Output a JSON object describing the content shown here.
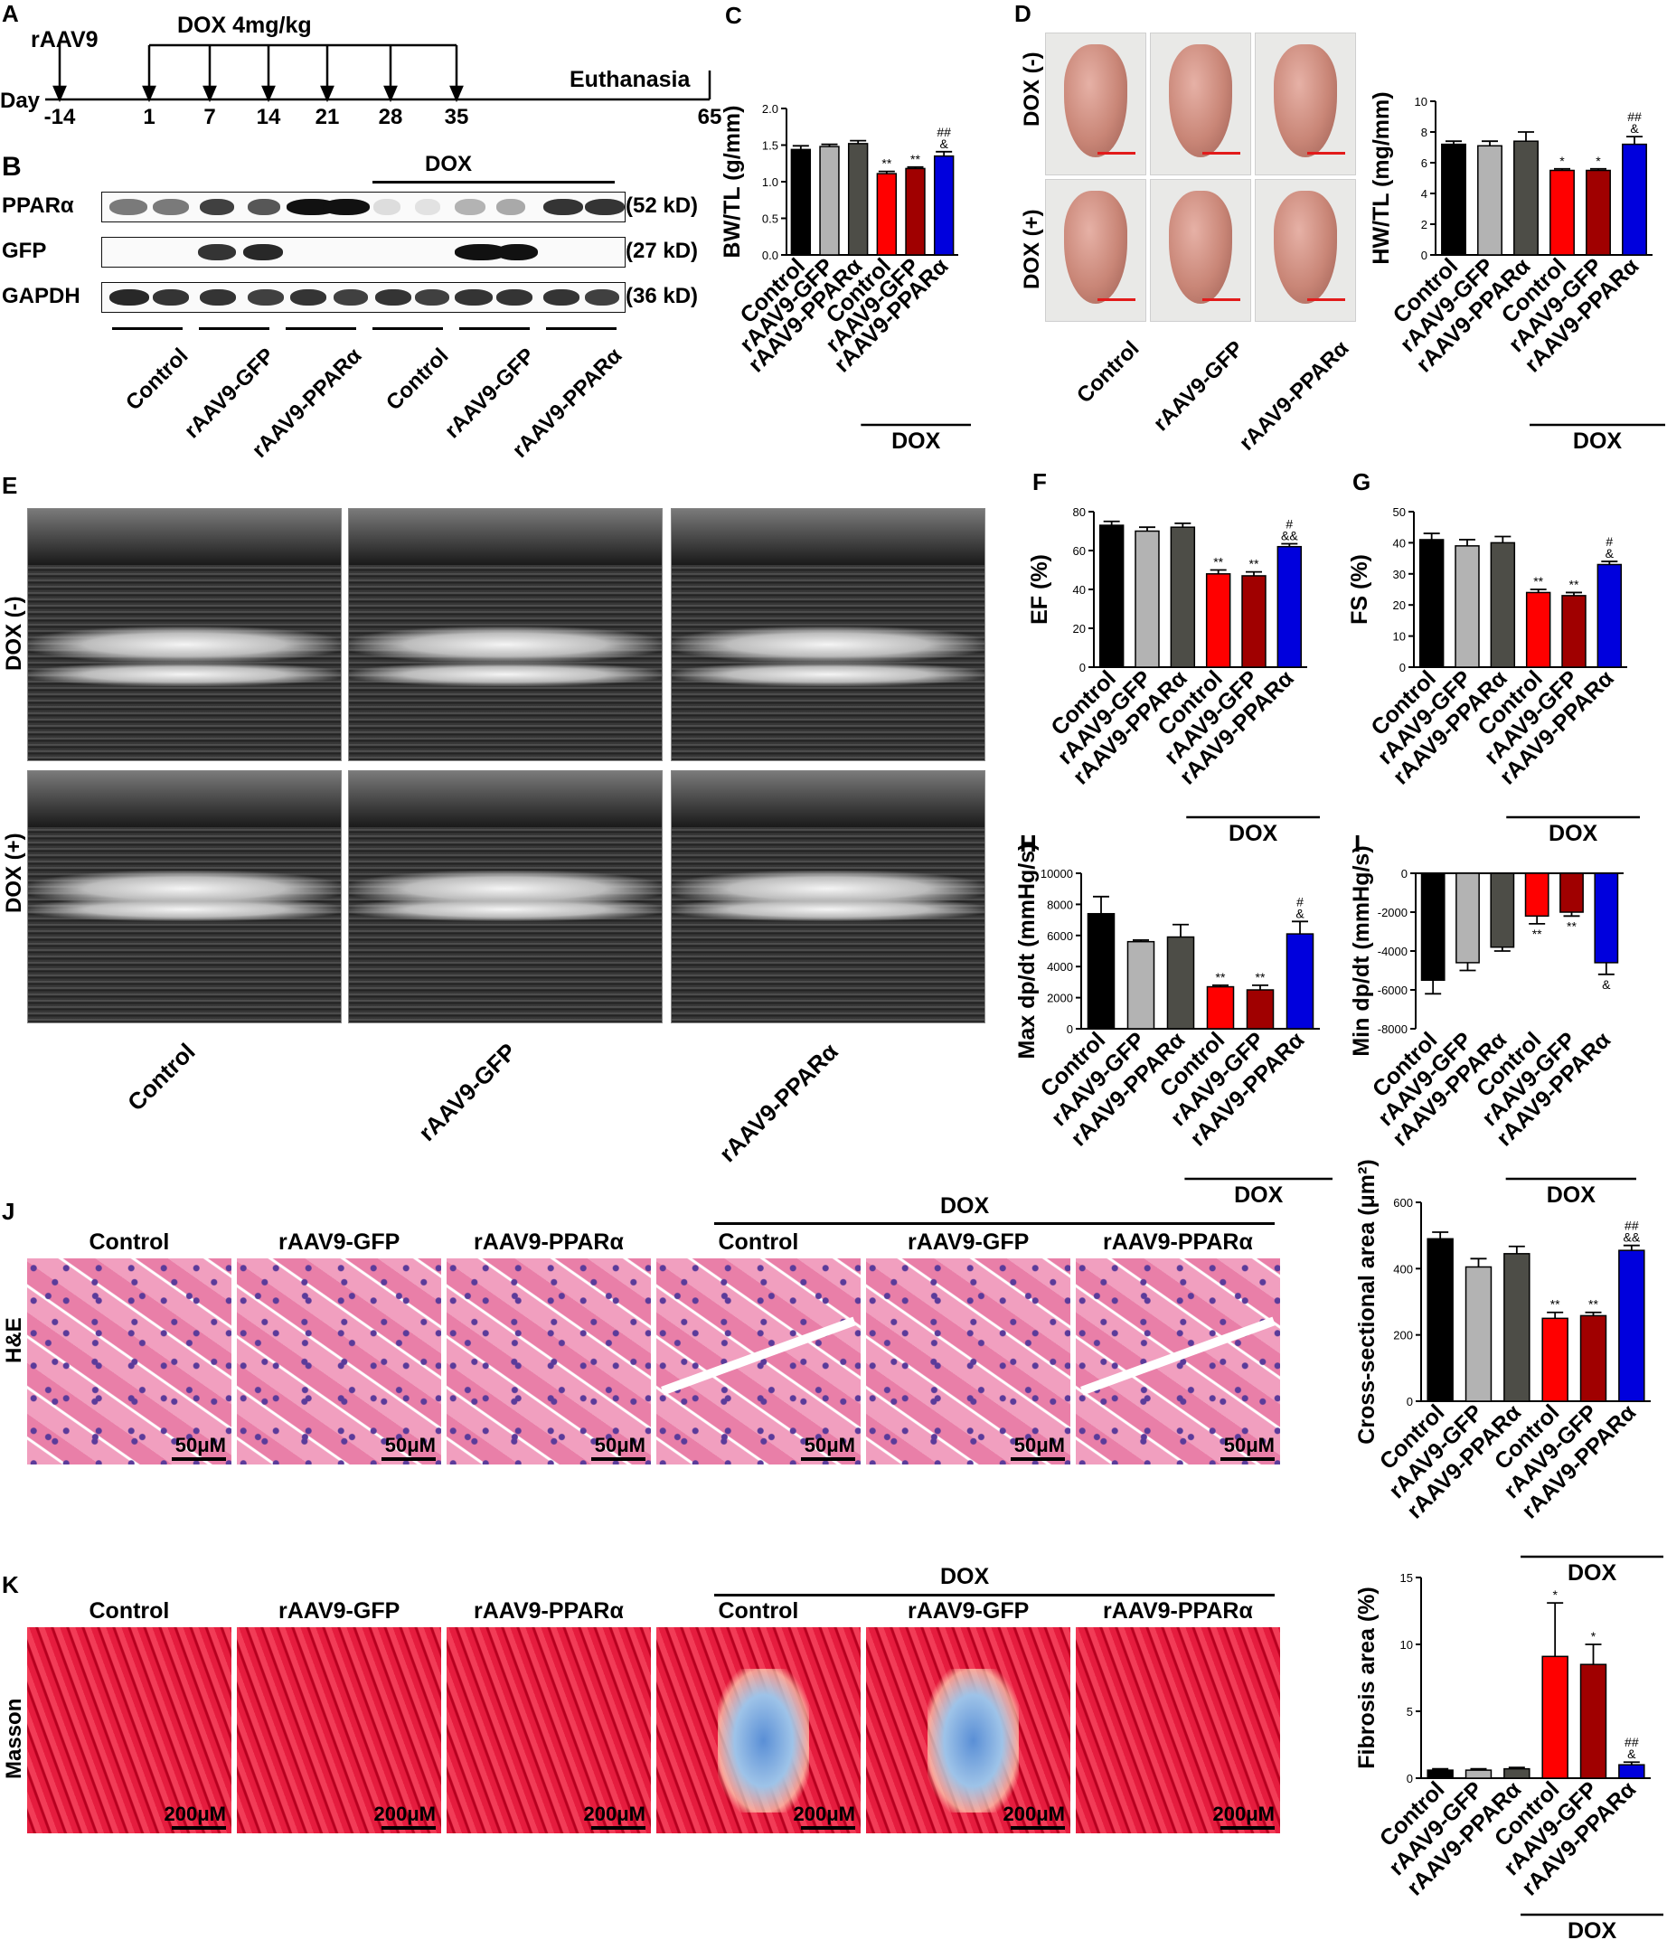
{
  "panelA": {
    "letter": "A",
    "vector": "rAAV9",
    "dose": "DOX 4mg/kg",
    "day_label": "Day",
    "end_label": "Euthanasia",
    "days": [
      "-14",
      "1",
      "7",
      "14",
      "21",
      "28",
      "35",
      "65"
    ]
  },
  "panelB": {
    "letter": "B",
    "dox": "DOX",
    "rows": [
      {
        "name": "PPARα",
        "size": "(52 kD)"
      },
      {
        "name": "GFP",
        "size": "(27 kD)"
      },
      {
        "name": "GAPDH",
        "size": "(36 kD)"
      }
    ],
    "groups": [
      "Control",
      "rAAV9-GFP",
      "rAAV9-PPARα",
      "Control",
      "rAAV9-GFP",
      "rAAV9-PPARα"
    ]
  },
  "panelD": {
    "letter": "D",
    "dox_neg": "DOX (-)",
    "dox_pos": "DOX (+)",
    "groups": [
      "Control",
      "rAAV9-GFP",
      "rAAV9-PPARα"
    ]
  },
  "panelE": {
    "letter": "E",
    "dox_neg": "DOX (-)",
    "dox_pos": "DOX (+)",
    "groups": [
      "Control",
      "rAAV9-GFP",
      "rAAV9-PPARα"
    ]
  },
  "panelJ": {
    "letter": "J",
    "dox": "DOX",
    "stain": "H&E",
    "groups": [
      "Control",
      "rAAV9-GFP",
      "rAAV9-PPARα",
      "Control",
      "rAAV9-GFP",
      "rAAV9-PPARα"
    ],
    "scale": "50μM"
  },
  "panelK": {
    "letter": "K",
    "dox": "DOX",
    "stain": "Masson",
    "groups": [
      "Control",
      "rAAV9-GFP",
      "rAAV9-PPARα",
      "Control",
      "rAAV9-GFP",
      "rAAV9-PPARα"
    ],
    "scale": "200μM"
  },
  "colors": {
    "control": "#000000",
    "gfp": "#b3b3b3",
    "ppar": "#4d4d47",
    "dox_control": "#ff0000",
    "dox_gfp": "#a00000",
    "dox_ppar": "#0000dd"
  },
  "chart_data": [
    {
      "id": "C",
      "type": "bar",
      "categories": [
        "Control",
        "rAAV9-GFP",
        "rAAV9-PPARα",
        "Control",
        "rAAV9-GFP",
        "rAAV9-PPARα"
      ],
      "values": [
        1.44,
        1.48,
        1.52,
        1.11,
        1.18,
        1.35
      ],
      "errors": [
        0.05,
        0.03,
        0.04,
        0.03,
        0.02,
        0.06
      ],
      "ylabel": "BW/TL (g/mm)",
      "ylim": [
        0,
        2.0
      ],
      "yticks": [
        "0.0",
        "0.5",
        "1.0",
        "1.5",
        "2.0"
      ],
      "annotations": [
        "",
        "",
        "",
        "**",
        "**",
        "##\n&"
      ],
      "group_label": "DOX",
      "letter": "C"
    },
    {
      "id": "D",
      "type": "bar",
      "categories": [
        "Control",
        "rAAV9-GFP",
        "rAAV9-PPARα",
        "Control",
        "rAAV9-GFP",
        "rAAV9-PPARα"
      ],
      "values": [
        7.2,
        7.1,
        7.4,
        5.5,
        5.5,
        7.2
      ],
      "errors": [
        0.2,
        0.3,
        0.6,
        0.1,
        0.1,
        0.5
      ],
      "ylabel": "HW/TL (mg/mm)",
      "ylim": [
        0,
        10
      ],
      "yticks": [
        "0",
        "2",
        "4",
        "6",
        "8",
        "10"
      ],
      "annotations": [
        "",
        "",
        "",
        "*",
        "*",
        "##\n&"
      ],
      "group_label": "DOX",
      "letter": ""
    },
    {
      "id": "F",
      "type": "bar",
      "categories": [
        "Control",
        "rAAV9-GFP",
        "rAAV9-PPARα",
        "Control",
        "rAAV9-GFP",
        "rAAV9-PPARα"
      ],
      "values": [
        73,
        70,
        72,
        48,
        47,
        62
      ],
      "errors": [
        2,
        2,
        2,
        2,
        2,
        1.5
      ],
      "ylabel": "EF (%)",
      "ylim": [
        0,
        80
      ],
      "yticks": [
        "0",
        "20",
        "40",
        "60",
        "80"
      ],
      "annotations": [
        "",
        "",
        "",
        "**",
        "**",
        "#\n&&"
      ],
      "group_label": "DOX",
      "letter": "F"
    },
    {
      "id": "G",
      "type": "bar",
      "categories": [
        "Control",
        "rAAV9-GFP",
        "rAAV9-PPARα",
        "Control",
        "rAAV9-GFP",
        "rAAV9-PPARα"
      ],
      "values": [
        41,
        39,
        40,
        24,
        23,
        33
      ],
      "errors": [
        2,
        2,
        2,
        1,
        1,
        1
      ],
      "ylabel": "FS (%)",
      "ylim": [
        0,
        50
      ],
      "yticks": [
        "0",
        "10",
        "20",
        "30",
        "40",
        "50"
      ],
      "annotations": [
        "",
        "",
        "",
        "**",
        "**",
        "#\n&"
      ],
      "group_label": "DOX",
      "letter": "G"
    },
    {
      "id": "H",
      "type": "bar",
      "categories": [
        "Control",
        "rAAV9-GFP",
        "rAAV9-PPARα",
        "Control",
        "rAAV9-GFP",
        "rAAV9-PPARα"
      ],
      "values": [
        7400,
        5600,
        5900,
        2700,
        2500,
        6100
      ],
      "errors": [
        1100,
        100,
        800,
        100,
        300,
        800
      ],
      "ylabel": "Max dp/dt (mmHg/s)",
      "ylim": [
        0,
        10000
      ],
      "yticks": [
        "0",
        "2000",
        "4000",
        "6000",
        "8000",
        "10000"
      ],
      "annotations": [
        "",
        "",
        "",
        "**",
        "**",
        "#\n&"
      ],
      "group_label": "DOX",
      "letter": "H"
    },
    {
      "id": "I",
      "type": "bar",
      "categories": [
        "Control",
        "rAAV9-GFP",
        "rAAV9-PPARα",
        "Control",
        "rAAV9-GFP",
        "rAAV9-PPARα"
      ],
      "values": [
        -5500,
        -4600,
        -3800,
        -2200,
        -2000,
        -4600
      ],
      "errors": [
        700,
        400,
        200,
        400,
        200,
        600
      ],
      "ylabel": "Min dp/dt (mmHg/s)",
      "ylim": [
        -8000,
        0
      ],
      "yticks": [
        "-8000",
        "-6000",
        "-4000",
        "-2000",
        "0"
      ],
      "annotations": [
        "",
        "",
        "",
        "**",
        "**",
        "&"
      ],
      "group_label": "DOX",
      "letter": "I"
    },
    {
      "id": "J",
      "type": "bar",
      "categories": [
        "Control",
        "rAAV9-GFP",
        "rAAV9-PPARα",
        "Control",
        "rAAV9-GFP",
        "rAAV9-PPARα"
      ],
      "values": [
        490,
        405,
        445,
        250,
        258,
        455
      ],
      "errors": [
        20,
        25,
        22,
        18,
        10,
        15
      ],
      "ylabel": "Cross-sectional area (μm²)",
      "ylim": [
        0,
        600
      ],
      "yticks": [
        "0",
        "200",
        "400",
        "600"
      ],
      "annotations": [
        "",
        "",
        "",
        "**",
        "**",
        "##\n&&"
      ],
      "group_label": "DOX",
      "letter": ""
    },
    {
      "id": "K",
      "type": "bar",
      "categories": [
        "Control",
        "rAAV9-GFP",
        "rAAV9-PPARα",
        "Control",
        "rAAV9-GFP",
        "rAAV9-PPARα"
      ],
      "values": [
        0.6,
        0.6,
        0.7,
        9.1,
        8.5,
        1.0
      ],
      "errors": [
        0.1,
        0.1,
        0.1,
        4.0,
        1.5,
        0.2
      ],
      "ylabel": "Fibrosis area (%)",
      "ylim": [
        0,
        15
      ],
      "yticks": [
        "0",
        "5",
        "10",
        "15"
      ],
      "annotations": [
        "",
        "",
        "",
        "*",
        "*",
        "##\n&"
      ],
      "group_label": "DOX",
      "letter": ""
    }
  ]
}
